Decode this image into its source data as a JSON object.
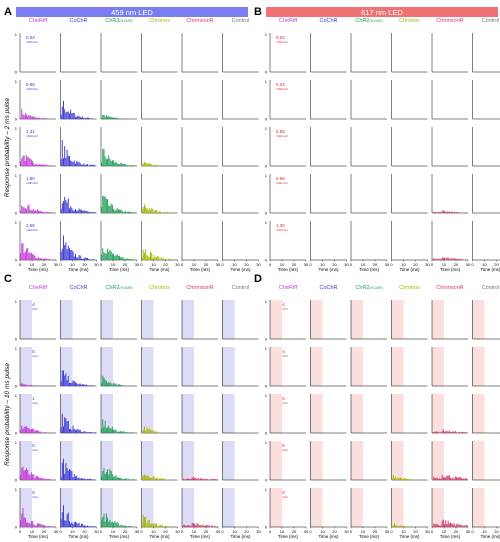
{
  "panels": [
    {
      "letter": "A",
      "led": "459 nm LED",
      "pulse": "2 ms",
      "colors": {
        "bar": "#7b7bec",
        "shade": null
      },
      "intensities": [
        "0.04",
        "0.65",
        "1.31",
        "1.80",
        "2.55"
      ],
      "int_color": "#3a33d6"
    },
    {
      "letter": "B",
      "led": "617 nm LED",
      "pulse": "2 ms",
      "colors": {
        "bar": "#ef7e84",
        "shade": null
      },
      "intensities": [
        "0.04",
        "0.24",
        "0.55",
        "0.68",
        "1.30"
      ],
      "int_color": "#d62a2a"
    },
    {
      "letter": "C",
      "led": "",
      "pulse": "10 ms",
      "colors": {
        "bar": null,
        "shade": "#dcdcf7"
      },
      "intensities": [
        "0.04",
        "0.65",
        "1.31",
        "1.80",
        "2.55"
      ],
      "int_color": "#3a33d6"
    },
    {
      "letter": "D",
      "led": "",
      "pulse": "10 ms",
      "colors": {
        "bar": null,
        "shade": "#fbdede"
      },
      "intensities": [
        "0.04",
        "0.24",
        "0.55",
        "0.68",
        "1.00"
      ],
      "int_color": "#d62a2a"
    }
  ],
  "opsins": [
    {
      "name": "CheRiff",
      "sub": "",
      "color": "#c13ad6"
    },
    {
      "name": "CoChR",
      "sub": "",
      "color": "#3b3bd4"
    },
    {
      "name": "ChR2",
      "sub": "(H134R)",
      "color": "#1f9e55"
    },
    {
      "name": "Chronos",
      "sub": "",
      "color": "#a6b800"
    },
    {
      "name": "ChrimsonR",
      "sub": "",
      "color": "#d63a6a"
    },
    {
      "name": "Control",
      "sub": "",
      "color": "#777777"
    }
  ],
  "int_unit": "mW/mm²",
  "ylabel_top": "Response probability – 2 ms pulse",
  "ylabel_bottom": "Response probability – 10 ms pulse",
  "xlabel": "Time (ms)",
  "xticks": [
    "0",
    "10",
    "20",
    "30"
  ],
  "yticks": [
    "0",
    "1"
  ],
  "chart_data": [
    {
      "type": "bar",
      "panel": "A",
      "description": "Peristimulus response histograms, 2 ms pulses at 459 nm",
      "x_range": [
        0,
        30
      ],
      "y_range": [
        0,
        1
      ],
      "activity": [
        [
          0,
          0,
          0,
          0,
          0,
          0
        ],
        [
          0.25,
          0.55,
          0.15,
          0,
          0,
          0
        ],
        [
          0.45,
          0.65,
          0.5,
          0.15,
          0,
          0
        ],
        [
          0.45,
          0.65,
          0.55,
          0.3,
          0,
          0
        ],
        [
          0.55,
          0.7,
          0.6,
          0.45,
          0,
          0
        ]
      ]
    },
    {
      "type": "bar",
      "panel": "B",
      "description": "Peristimulus response histograms, 2 ms pulses at 617 nm",
      "x_range": [
        0,
        30
      ],
      "y_range": [
        0,
        1
      ],
      "activity": [
        [
          0,
          0,
          0,
          0,
          0,
          0
        ],
        [
          0,
          0,
          0,
          0,
          0,
          0
        ],
        [
          0,
          0,
          0,
          0,
          0,
          0
        ],
        [
          0,
          0,
          0,
          0,
          0.1,
          0
        ],
        [
          0,
          0,
          0,
          0,
          0.15,
          0
        ]
      ]
    },
    {
      "type": "bar",
      "panel": "C",
      "description": "Peristimulus response histograms, 10 ms pulses at 459 nm",
      "x_range": [
        0,
        30
      ],
      "y_range": [
        0,
        1
      ],
      "activity": [
        [
          0,
          0,
          0,
          0,
          0,
          0
        ],
        [
          0.1,
          0.45,
          0.25,
          0,
          0,
          0
        ],
        [
          0.35,
          0.55,
          0.4,
          0.2,
          0,
          0
        ],
        [
          0.5,
          0.6,
          0.55,
          0.3,
          0.15,
          0
        ],
        [
          0.55,
          0.65,
          0.5,
          0.35,
          0.2,
          0
        ]
      ]
    },
    {
      "type": "bar",
      "panel": "D",
      "description": "Peristimulus response histograms, 10 ms pulses at 617 nm",
      "x_range": [
        0,
        30
      ],
      "y_range": [
        0,
        1
      ],
      "activity": [
        [
          0,
          0,
          0,
          0,
          0,
          0
        ],
        [
          0,
          0,
          0,
          0,
          0,
          0
        ],
        [
          0,
          0,
          0,
          0,
          0.15,
          0
        ],
        [
          0,
          0,
          0,
          0.15,
          0.3,
          0
        ],
        [
          0,
          0,
          0,
          0.1,
          0.35,
          0
        ]
      ]
    }
  ]
}
